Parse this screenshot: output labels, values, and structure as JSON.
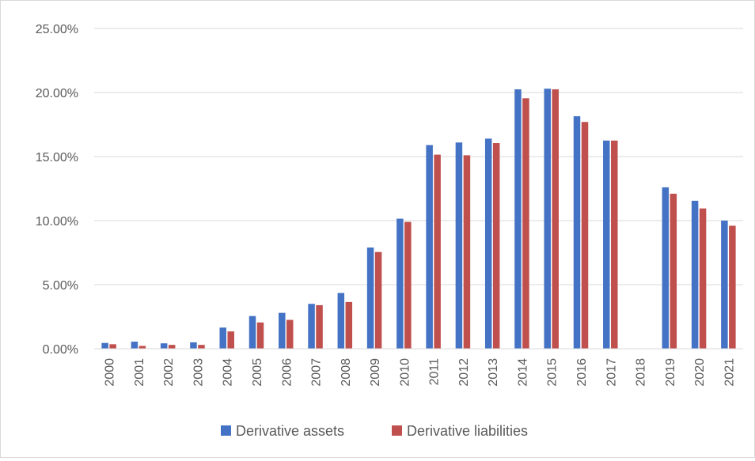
{
  "chart_data": {
    "type": "bar",
    "title": "",
    "xlabel": "",
    "ylabel": "",
    "ylim": [
      0,
      0.25
    ],
    "y_ticks": [
      "0.00%",
      "5.00%",
      "10.00%",
      "15.00%",
      "20.00%",
      "25.00%"
    ],
    "y_tick_values": [
      0,
      0.05,
      0.1,
      0.15,
      0.2,
      0.25
    ],
    "grid": true,
    "legend_position": "bottom",
    "categories": [
      "2000",
      "2001",
      "2002",
      "2003",
      "2004",
      "2005",
      "2006",
      "2007",
      "2008",
      "2009",
      "2010",
      "2011",
      "2012",
      "2013",
      "2014",
      "2015",
      "2016",
      "2017",
      "2018",
      "2019",
      "2020",
      "2021"
    ],
    "series": [
      {
        "name": "Derivative assets",
        "color": "#4472c4",
        "values": [
          0.0045,
          0.0055,
          0.0042,
          0.005,
          0.0165,
          0.0255,
          0.028,
          0.035,
          0.0435,
          0.079,
          0.1015,
          0.159,
          0.161,
          0.164,
          0.2025,
          0.203,
          0.1815,
          0.1625,
          null,
          0.126,
          0.1155,
          0.1
        ]
      },
      {
        "name": "Derivative liabilities",
        "color": "#c0504d",
        "values": [
          0.0035,
          0.0022,
          0.003,
          0.003,
          0.0135,
          0.0205,
          0.0225,
          0.034,
          0.0365,
          0.0755,
          0.099,
          0.1515,
          0.151,
          0.1605,
          0.1955,
          0.2025,
          0.177,
          0.1625,
          null,
          0.121,
          0.1095,
          0.096
        ]
      }
    ]
  }
}
